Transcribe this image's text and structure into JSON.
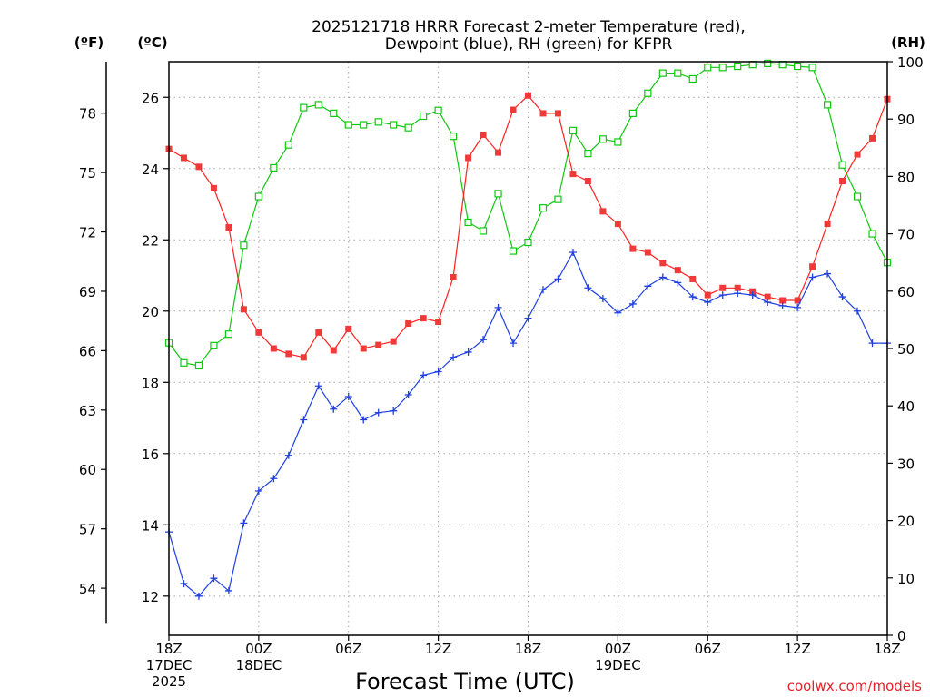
{
  "colors": {
    "temperature": "#ff2020",
    "temperature_marker": "#f03a3a",
    "dewpoint": "#1f3fe0",
    "rh": "#10c810",
    "grid": "#a8a8a8",
    "credit": "#e8202a"
  },
  "chart_data": {
    "type": "line",
    "title": [
      "2025121718 HRRR Forecast 2-meter Temperature (red),",
      "Dewpoint (blue), RH (green) for KFPR"
    ],
    "xlabel": "Forecast Time (UTC)",
    "credit": "coolwx.com/models",
    "units": {
      "left_f": "(ºF)",
      "left_c": "(ºC)",
      "right": "(RH)"
    },
    "x_range": [
      0,
      48
    ],
    "x_ticks": [
      {
        "h": 0,
        "lines": [
          "18Z",
          "17DEC",
          "2025"
        ]
      },
      {
        "h": 6,
        "lines": [
          "00Z",
          "18DEC"
        ]
      },
      {
        "h": 12,
        "lines": [
          "06Z"
        ]
      },
      {
        "h": 18,
        "lines": [
          "12Z"
        ]
      },
      {
        "h": 24,
        "lines": [
          "18Z"
        ]
      },
      {
        "h": 30,
        "lines": [
          "00Z",
          "19DEC"
        ]
      },
      {
        "h": 36,
        "lines": [
          "06Z"
        ]
      },
      {
        "h": 42,
        "lines": [
          "12Z"
        ]
      },
      {
        "h": 48,
        "lines": [
          "18Z"
        ]
      }
    ],
    "y_celsius": {
      "range": [
        10.9,
        27.0
      ],
      "ticks": [
        12,
        14,
        16,
        18,
        20,
        22,
        24,
        26
      ]
    },
    "y_fahrenheit_ticks": [
      54,
      57,
      60,
      63,
      66,
      69,
      72,
      75,
      78
    ],
    "y_rh": {
      "range": [
        0,
        100
      ],
      "ticks": [
        0,
        10,
        20,
        30,
        40,
        50,
        60,
        70,
        80,
        90,
        100
      ]
    },
    "series": [
      {
        "name": "Temperature",
        "units": "°C",
        "marker": "filled-square",
        "x": [
          0,
          1,
          2,
          3,
          4,
          5,
          6,
          7,
          8,
          9,
          10,
          11,
          12,
          13,
          14,
          15,
          16,
          17,
          18,
          19,
          20,
          21,
          22,
          23,
          24,
          25,
          26,
          27,
          28,
          29,
          30,
          31,
          32,
          33,
          34,
          35,
          36,
          37,
          38,
          39,
          40,
          41,
          42,
          43,
          44,
          45,
          46,
          47,
          48
        ],
        "values": [
          24.55,
          24.3,
          24.05,
          23.45,
          22.35,
          20.05,
          19.4,
          18.95,
          18.8,
          18.7,
          19.4,
          18.9,
          19.5,
          18.95,
          19.05,
          19.15,
          19.65,
          19.8,
          19.7,
          20.95,
          24.3,
          24.95,
          24.45,
          25.65,
          26.05,
          25.55,
          25.55,
          23.85,
          23.65,
          22.8,
          22.45,
          21.75,
          21.65,
          21.35,
          21.15,
          20.9,
          20.45,
          20.65,
          20.65,
          20.55,
          20.4,
          20.3,
          20.3,
          21.25,
          22.45,
          23.65,
          24.4,
          24.85,
          25.95
        ]
      },
      {
        "name": "Dewpoint",
        "units": "°C",
        "marker": "plus",
        "x": [
          0,
          1,
          2,
          3,
          4,
          5,
          6,
          7,
          8,
          9,
          10,
          11,
          12,
          13,
          14,
          15,
          16,
          17,
          18,
          19,
          20,
          21,
          22,
          23,
          24,
          25,
          26,
          27,
          28,
          29,
          30,
          31,
          32,
          33,
          34,
          35,
          36,
          37,
          38,
          39,
          40,
          41,
          42,
          43,
          44,
          45,
          46,
          47,
          48
        ],
        "values": [
          13.8,
          12.35,
          12.0,
          12.5,
          12.15,
          14.05,
          14.95,
          15.3,
          15.95,
          16.95,
          17.9,
          17.25,
          17.6,
          16.95,
          17.15,
          17.2,
          17.65,
          18.2,
          18.3,
          18.7,
          18.85,
          19.2,
          20.1,
          19.1,
          19.8,
          20.6,
          20.9,
          21.65,
          20.65,
          20.35,
          19.95,
          20.2,
          20.7,
          20.95,
          20.8,
          20.4,
          20.25,
          20.45,
          20.5,
          20.45,
          20.25,
          20.15,
          20.1,
          20.95,
          21.05,
          20.4,
          20.0,
          19.1,
          19.1
        ]
      },
      {
        "name": "RH",
        "units": "%",
        "marker": "open-square",
        "x": [
          0,
          1,
          2,
          3,
          4,
          5,
          6,
          7,
          8,
          9,
          10,
          11,
          12,
          13,
          14,
          15,
          16,
          17,
          18,
          19,
          20,
          21,
          22,
          23,
          24,
          25,
          26,
          27,
          28,
          29,
          30,
          31,
          32,
          33,
          34,
          35,
          36,
          37,
          38,
          39,
          40,
          41,
          42,
          43,
          44,
          45,
          46,
          47,
          48
        ],
        "values": [
          51,
          47.5,
          47,
          50.5,
          52.5,
          68,
          76.5,
          81.5,
          85.5,
          92,
          92.5,
          91,
          89,
          89,
          89.5,
          89,
          88.5,
          90.5,
          91.5,
          87,
          72,
          70.5,
          77,
          67,
          68.5,
          74.5,
          76,
          88,
          84,
          86.5,
          86,
          91,
          94.5,
          98,
          98,
          97,
          99,
          99,
          99.2,
          99.5,
          99.7,
          99.5,
          99.2,
          99,
          92.5,
          82,
          76.5,
          70,
          65
        ]
      }
    ]
  }
}
